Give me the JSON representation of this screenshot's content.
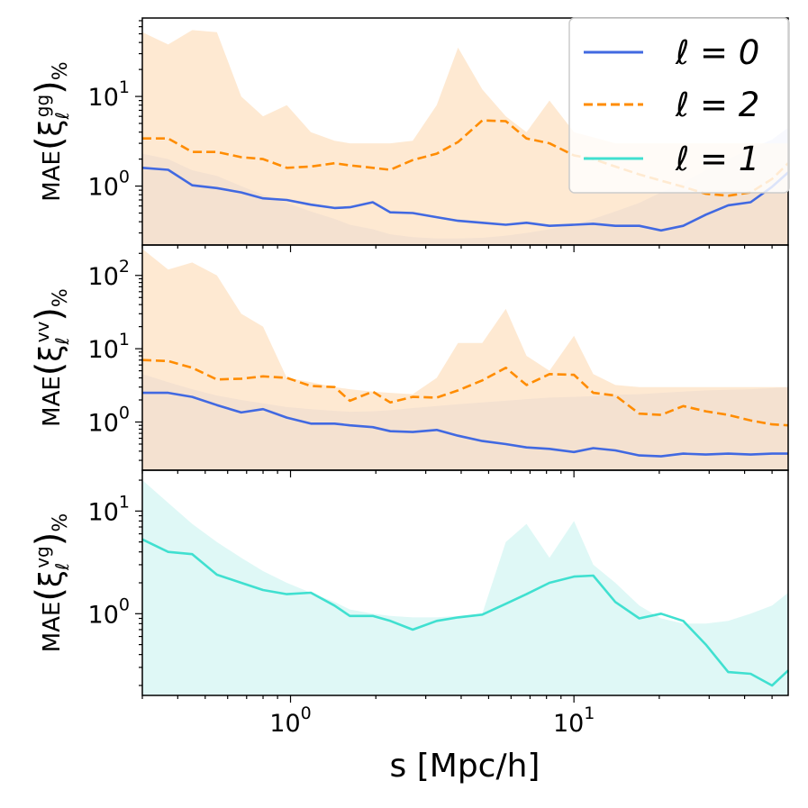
{
  "chart_data": [
    {
      "type": "line",
      "panel": "top",
      "ylabel": {
        "prefix": "MAE",
        "bracket_left": "(",
        "xi": "ξ",
        "sub": "ℓ",
        "sup": "gg",
        "bracket_right": ")",
        "suffix": "%"
      },
      "xscale": "log",
      "yscale": "log",
      "xlim": [
        0.3,
        57
      ],
      "ylim": [
        0.22,
        75
      ],
      "yticks": [
        {
          "value": 1,
          "base": "10",
          "exp": "0"
        },
        {
          "value": 10,
          "base": "10",
          "exp": "1"
        }
      ],
      "x": [
        0.3,
        0.37,
        0.45,
        0.55,
        0.67,
        0.8,
        0.97,
        1.18,
        1.43,
        1.62,
        1.95,
        2.25,
        2.7,
        3.28,
        3.9,
        4.75,
        5.75,
        6.8,
        8.2,
        10,
        11.7,
        14,
        17,
        20.3,
        24.3,
        29.2,
        35,
        42,
        50,
        57
      ],
      "series": [
        {
          "name": "ℓ = 0",
          "color": "#4169e1",
          "dash": "solid",
          "values": [
            1.6,
            1.52,
            1.02,
            0.95,
            0.85,
            0.73,
            0.7,
            0.62,
            0.57,
            0.58,
            0.66,
            0.51,
            0.5,
            0.45,
            0.41,
            0.39,
            0.37,
            0.39,
            0.36,
            0.37,
            0.38,
            0.36,
            0.36,
            0.32,
            0.36,
            0.48,
            0.61,
            0.66,
            0.98,
            1.42
          ],
          "band_lower": [
            0.22,
            0.22,
            0.22,
            0.22,
            0.22,
            0.22,
            0.22,
            0.22,
            0.22,
            0.22,
            0.22,
            0.22,
            0.22,
            0.22,
            0.22,
            0.22,
            0.22,
            0.22,
            0.22,
            0.22,
            0.22,
            0.22,
            0.22,
            0.22,
            0.22,
            0.22,
            0.22,
            0.22,
            0.22,
            0.22
          ],
          "band_upper": [
            2.3,
            2.0,
            1.5,
            1.3,
            1.0,
            0.8,
            0.65,
            0.52,
            0.43,
            0.37,
            0.33,
            0.29,
            0.27,
            0.26,
            0.26,
            0.265,
            0.28,
            0.3,
            0.33,
            0.37,
            0.43,
            0.52,
            0.65,
            0.85,
            1.1,
            1.5,
            2.0,
            2.6,
            3.3,
            4.5
          ],
          "band_color": "#c9d3f5"
        },
        {
          "name": "ℓ = 2",
          "color": "#ff8c00",
          "dash": "dashed",
          "values": [
            3.4,
            3.4,
            2.4,
            2.4,
            2.1,
            2.0,
            1.6,
            1.65,
            1.8,
            1.7,
            1.6,
            1.52,
            1.95,
            2.3,
            3.1,
            5.4,
            5.3,
            3.4,
            3.0,
            2.2,
            2.0,
            1.65,
            1.35,
            1.15,
            0.98,
            0.82,
            0.78,
            0.85,
            1.2,
            1.8
          ],
          "band_upper": [
            52,
            38,
            55,
            52,
            10,
            6,
            8,
            4,
            3.2,
            3.0,
            3.0,
            3.0,
            3.2,
            8,
            35,
            12,
            6,
            4,
            9,
            4,
            3.5,
            3.0,
            3.0,
            3.0,
            3.0,
            3.0,
            3.0,
            3.0,
            3.0,
            3.0
          ],
          "band_color": "#fde1c3"
        }
      ],
      "legend": {
        "location": "top-right",
        "entries": [
          {
            "label": "ℓ = 0",
            "color": "#4169e1",
            "dash": "solid"
          },
          {
            "label": "ℓ = 2",
            "color": "#ff8c00",
            "dash": "dashed"
          },
          {
            "label": "ℓ = 1",
            "color": "#40e0d0",
            "dash": "solid"
          }
        ]
      }
    },
    {
      "type": "line",
      "panel": "middle",
      "ylabel": {
        "prefix": "MAE",
        "bracket_left": "(",
        "xi": "ξ",
        "sub": "ℓ",
        "sup": "vv",
        "bracket_right": ")",
        "suffix": "%"
      },
      "xscale": "log",
      "yscale": "log",
      "xlim": [
        0.3,
        57
      ],
      "ylim": [
        0.22,
        260
      ],
      "yticks": [
        {
          "value": 1,
          "base": "10",
          "exp": "0"
        },
        {
          "value": 10,
          "base": "10",
          "exp": "1"
        },
        {
          "value": 100,
          "base": "10",
          "exp": "2"
        }
      ],
      "x": [
        0.3,
        0.37,
        0.45,
        0.55,
        0.67,
        0.8,
        0.97,
        1.18,
        1.43,
        1.62,
        1.95,
        2.25,
        2.7,
        3.28,
        3.9,
        4.75,
        5.75,
        6.8,
        8.2,
        10,
        11.7,
        14,
        17,
        20.3,
        24.3,
        29.2,
        35,
        42,
        50,
        57
      ],
      "series": [
        {
          "name": "ℓ = 0",
          "color": "#4169e1",
          "dash": "solid",
          "values": [
            2.5,
            2.5,
            2.2,
            1.7,
            1.35,
            1.5,
            1.15,
            0.95,
            0.95,
            0.9,
            0.85,
            0.75,
            0.73,
            0.78,
            0.65,
            0.55,
            0.5,
            0.45,
            0.43,
            0.39,
            0.44,
            0.41,
            0.35,
            0.34,
            0.37,
            0.36,
            0.37,
            0.36,
            0.37,
            0.37
          ],
          "band_lower": [
            0.22,
            0.22,
            0.22,
            0.22,
            0.22,
            0.22,
            0.22,
            0.22,
            0.22,
            0.22,
            0.22,
            0.22,
            0.22,
            0.22,
            0.22,
            0.22,
            0.22,
            0.22,
            0.22,
            0.22,
            0.22,
            0.22,
            0.22,
            0.22,
            0.22,
            0.22,
            0.22,
            0.22,
            0.22,
            0.22
          ],
          "band_upper": [
            4.5,
            3.5,
            2.8,
            2.3,
            2.0,
            1.8,
            1.6,
            1.5,
            1.42,
            1.38,
            1.4,
            1.45,
            1.55,
            1.65,
            1.75,
            1.85,
            1.95,
            2.05,
            2.15,
            2.2,
            2.25,
            2.35,
            2.4,
            2.5,
            2.6,
            2.7,
            2.75,
            2.8,
            2.9,
            3.0
          ],
          "band_color": "#c9d3f5"
        },
        {
          "name": "ℓ = 2",
          "color": "#ff8c00",
          "dash": "dashed",
          "values": [
            7,
            6.8,
            5.5,
            3.8,
            3.9,
            4.2,
            4.0,
            3.1,
            3.0,
            1.95,
            2.6,
            1.85,
            2.2,
            2.15,
            2.7,
            3.7,
            5.5,
            3.2,
            4.5,
            4.4,
            2.5,
            2.3,
            1.3,
            1.25,
            1.65,
            1.4,
            1.25,
            1.05,
            0.93,
            0.9
          ],
          "band_upper": [
            230,
            120,
            150,
            100,
            30,
            20,
            4,
            3.5,
            3.0,
            2.8,
            2.6,
            2.5,
            2.4,
            4.0,
            12,
            12,
            35,
            8,
            5,
            15,
            4.5,
            3.2,
            3.0,
            3.0,
            3.0,
            3.0,
            3.0,
            3.0,
            3.0,
            3.0
          ],
          "band_color": "#fde1c3"
        }
      ]
    },
    {
      "type": "line",
      "panel": "bottom",
      "ylabel": {
        "prefix": "MAE",
        "bracket_left": "(",
        "xi": "ξ",
        "sub": "ℓ",
        "sup": "vg",
        "bracket_right": ")",
        "suffix": "%"
      },
      "xscale": "log",
      "yscale": "log",
      "xlim": [
        0.3,
        57
      ],
      "ylim": [
        0.16,
        25
      ],
      "yticks": [
        {
          "value": 1,
          "base": "10",
          "exp": "0"
        },
        {
          "value": 10,
          "base": "10",
          "exp": "1"
        }
      ],
      "xticks": [
        {
          "value": 1,
          "base": "10",
          "exp": "0"
        },
        {
          "value": 10,
          "base": "10",
          "exp": "1"
        }
      ],
      "xlabel": "s [Mpc/h]",
      "x": [
        0.3,
        0.37,
        0.45,
        0.55,
        0.67,
        0.8,
        0.97,
        1.18,
        1.43,
        1.62,
        1.95,
        2.25,
        2.7,
        3.28,
        3.9,
        4.75,
        5.75,
        6.8,
        8.2,
        10,
        11.7,
        14,
        17,
        20.3,
        24.3,
        29.2,
        35,
        42,
        50,
        57
      ],
      "series": [
        {
          "name": "ℓ = 1",
          "color": "#40e0d0",
          "dash": "solid",
          "values": [
            5.3,
            4.0,
            3.8,
            2.4,
            2.0,
            1.7,
            1.55,
            1.6,
            1.2,
            0.95,
            0.95,
            0.85,
            0.7,
            0.85,
            0.92,
            0.98,
            1.25,
            1.55,
            2.0,
            2.3,
            2.35,
            1.3,
            0.9,
            1.0,
            0.85,
            0.5,
            0.27,
            0.26,
            0.2,
            0.28
          ],
          "band_lower": [
            0.16,
            0.16,
            0.16,
            0.16,
            0.16,
            0.16,
            0.16,
            0.16,
            0.16,
            0.16,
            0.16,
            0.16,
            0.16,
            0.16,
            0.16,
            0.16,
            0.16,
            0.16,
            0.16,
            0.16,
            0.16,
            0.16,
            0.16,
            0.16,
            0.16,
            0.16,
            0.16,
            0.16,
            0.16,
            0.16
          ],
          "band_upper": [
            20,
            12,
            7.5,
            5,
            3.5,
            2.6,
            2.0,
            1.6,
            1.3,
            1.1,
            1.0,
            0.95,
            0.92,
            0.92,
            0.95,
            1.0,
            5,
            7.5,
            3.5,
            8,
            3,
            2.0,
            1.2,
            0.9,
            0.8,
            0.8,
            0.85,
            1.0,
            1.2,
            1.6
          ],
          "band_color": "#d4f6f3"
        }
      ]
    }
  ]
}
